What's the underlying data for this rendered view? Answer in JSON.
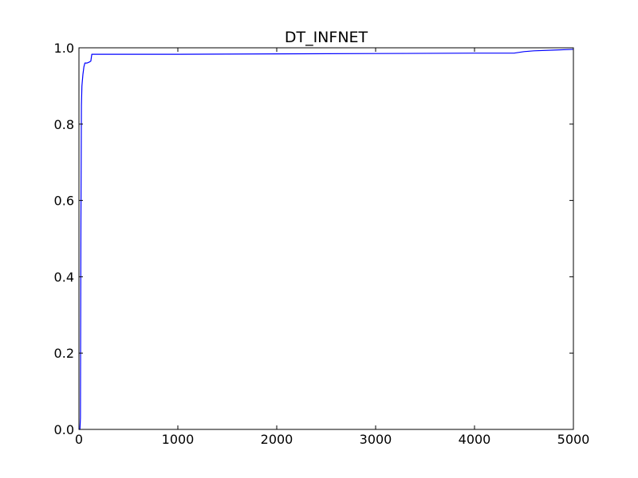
{
  "chart_data": {
    "type": "line",
    "title": "DT_INFNET",
    "xlabel": "",
    "ylabel": "",
    "xlim": [
      0,
      5000
    ],
    "ylim": [
      0.0,
      1.0
    ],
    "grid": false,
    "x_ticks": [
      0,
      1000,
      2000,
      3000,
      4000,
      5000
    ],
    "x_tick_labels": [
      "0",
      "1000",
      "2000",
      "3000",
      "4000",
      "5000"
    ],
    "y_ticks": [
      0.0,
      0.2,
      0.4,
      0.6,
      0.8,
      1.0
    ],
    "y_tick_labels": [
      "0.0",
      "0.2",
      "0.4",
      "0.6",
      "0.8",
      "1.0"
    ],
    "series": [
      {
        "color": "#0000ff",
        "x": [
          0,
          5,
          10,
          15,
          20,
          25,
          30,
          40,
          50,
          60,
          80,
          100,
          120,
          130,
          140,
          500,
          1000,
          2000,
          3000,
          4000,
          4400,
          4500,
          4600,
          4800,
          5000
        ],
        "y": [
          0.0,
          0.0,
          0.0,
          0.03,
          0.55,
          0.85,
          0.9,
          0.93,
          0.95,
          0.96,
          0.96,
          0.962,
          0.965,
          0.983,
          0.983,
          0.983,
          0.983,
          0.984,
          0.985,
          0.986,
          0.986,
          0.99,
          0.992,
          0.994,
          0.996
        ]
      }
    ]
  }
}
